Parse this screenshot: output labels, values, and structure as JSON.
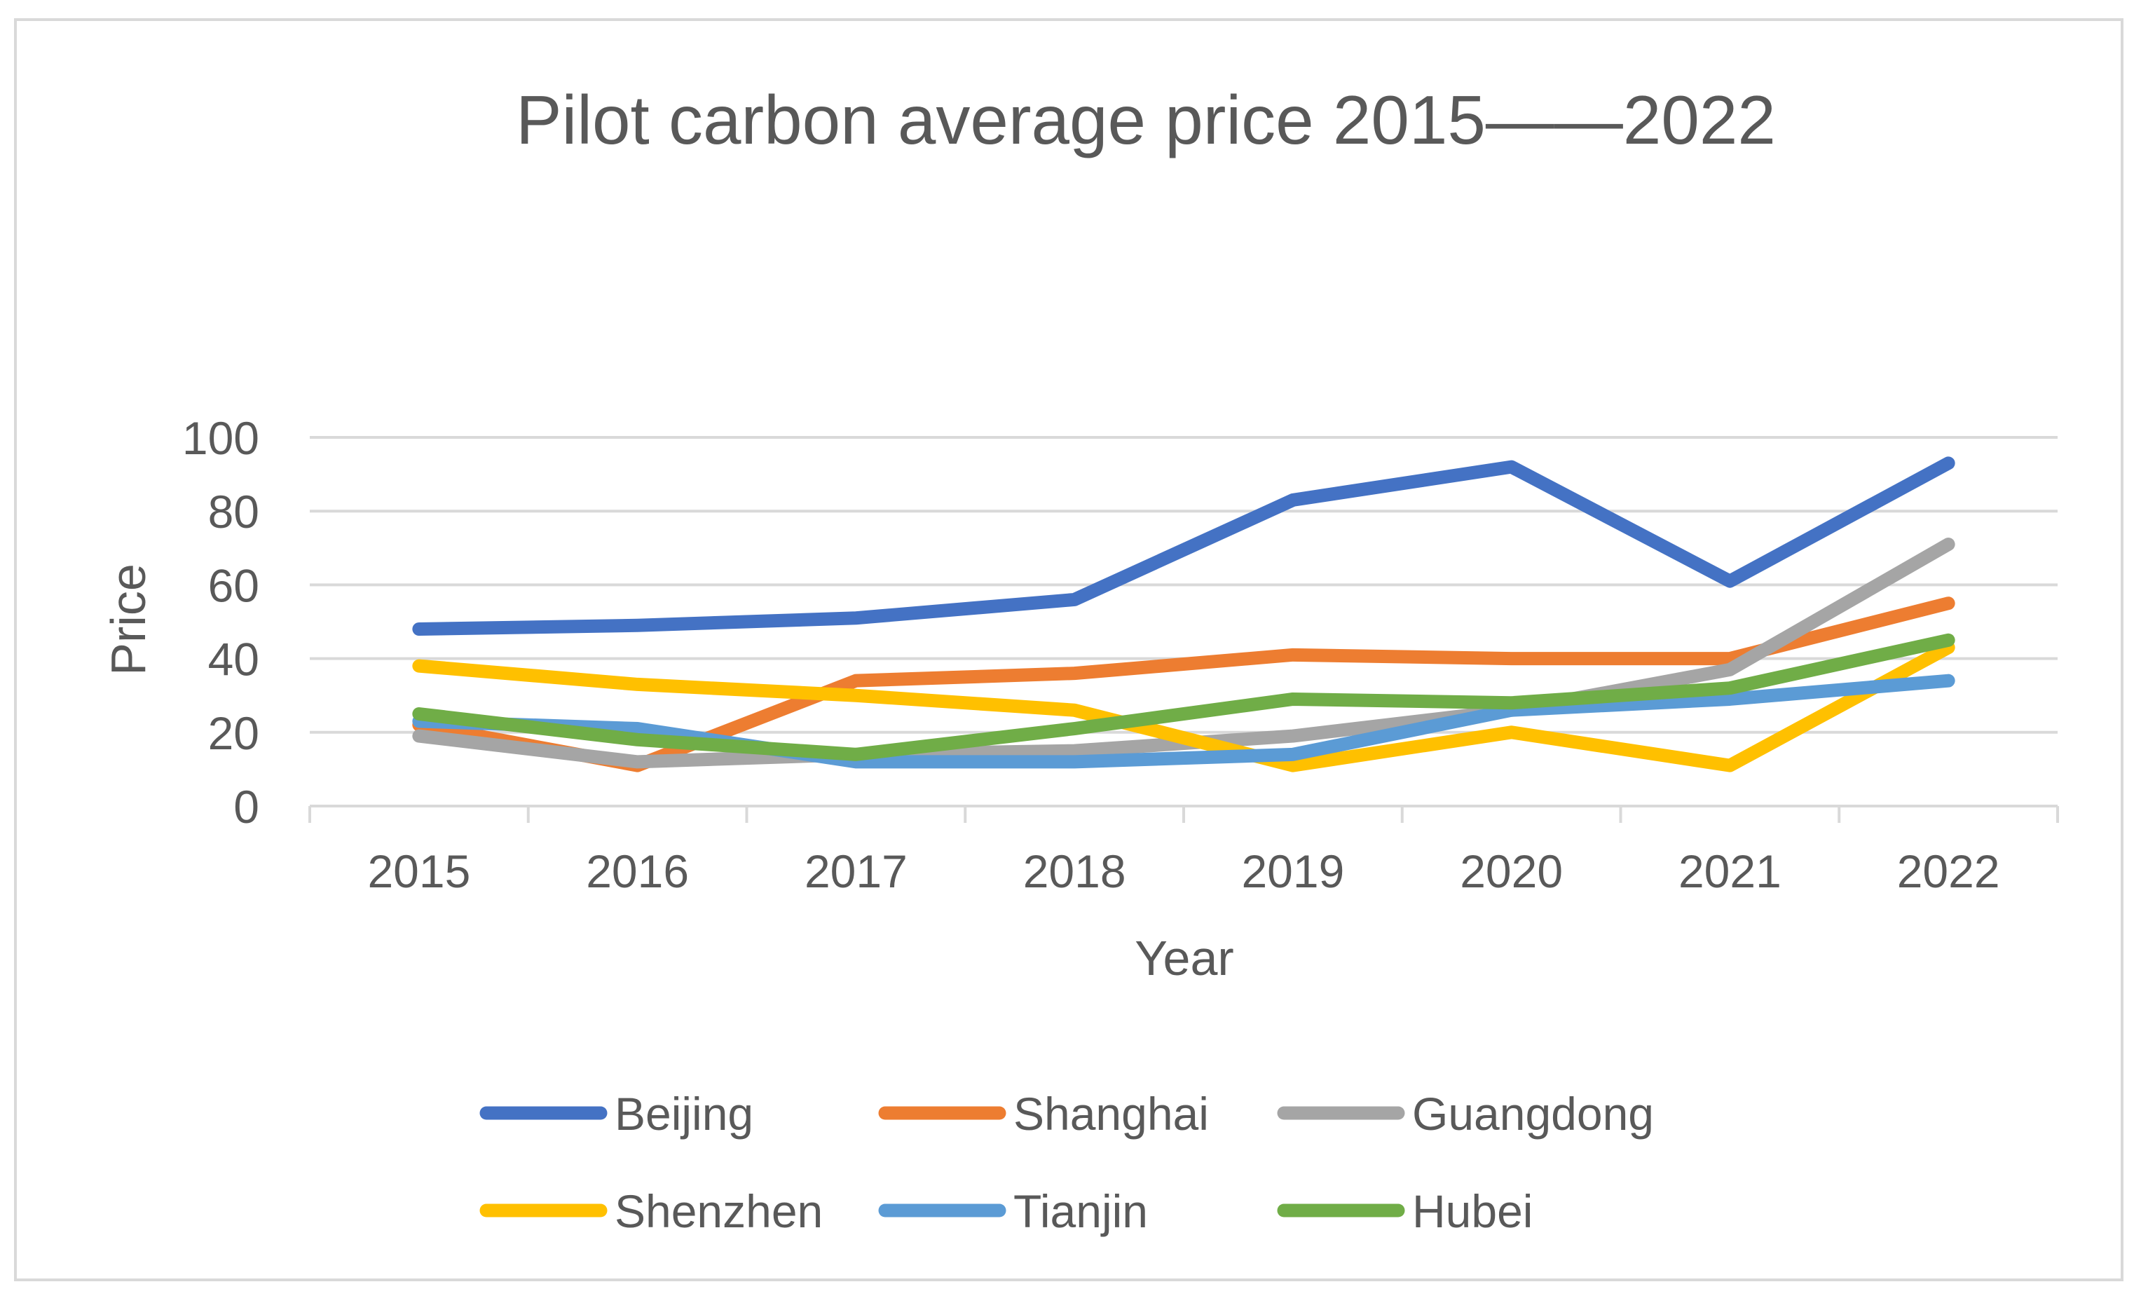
{
  "chart_data": {
    "type": "line",
    "title": "Pilot carbon average price 2015——2022",
    "xlabel": "Year",
    "ylabel": "Price",
    "ylim": [
      0,
      100
    ],
    "yticks": [
      0,
      20,
      40,
      60,
      80,
      100
    ],
    "grid": true,
    "legend_position": "bottom",
    "categories": [
      "2015",
      "2016",
      "2017",
      "2018",
      "2019",
      "2020",
      "2021",
      "2022"
    ],
    "series": [
      {
        "name": "Beijing",
        "color": "#4472C4",
        "values": [
          48,
          49,
          51,
          56,
          83,
          92,
          61,
          93
        ]
      },
      {
        "name": "Shanghai",
        "color": "#ED7D31",
        "values": [
          22,
          11,
          34,
          36,
          41,
          40,
          40,
          55
        ]
      },
      {
        "name": "Guangdong",
        "color": "#A5A5A5",
        "values": [
          19,
          12,
          14,
          15,
          19,
          26,
          37,
          71
        ]
      },
      {
        "name": "Shenzhen",
        "color": "#FFC000",
        "values": [
          38,
          33,
          30,
          26,
          11,
          20,
          11,
          43
        ]
      },
      {
        "name": "Tianjin",
        "color": "#5B9BD5",
        "values": [
          23,
          21,
          12,
          12,
          14,
          26,
          29,
          34
        ]
      },
      {
        "name": "Hubei",
        "color": "#70AD47",
        "values": [
          25,
          18,
          14,
          21,
          29,
          28,
          32,
          45
        ]
      }
    ]
  }
}
